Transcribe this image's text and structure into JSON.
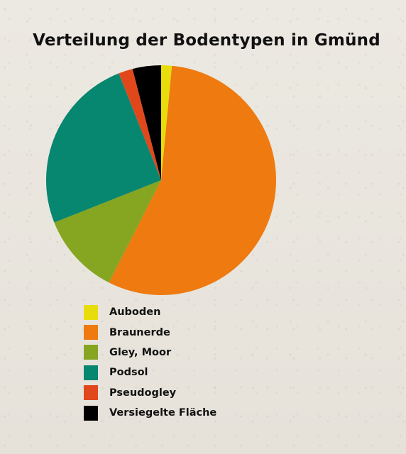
{
  "chart_data": {
    "type": "pie",
    "title": "Verteilung der Bodentypen in Gmünd",
    "legend_position": "bottom-left",
    "slices": [
      {
        "label": "Auboden",
        "value": 1.5,
        "color": "#e8dc0c"
      },
      {
        "label": "Braunerde",
        "value": 56,
        "color": "#ee7a10"
      },
      {
        "label": "Gley, Moor",
        "value": 11.5,
        "color": "#86a521"
      },
      {
        "label": "Podsol",
        "value": 25,
        "color": "#078670"
      },
      {
        "label": "Pseudogley",
        "value": 2,
        "color": "#e0481c"
      },
      {
        "label": "Versiegelte Fläche",
        "value": 4,
        "color": "#000000"
      }
    ]
  }
}
